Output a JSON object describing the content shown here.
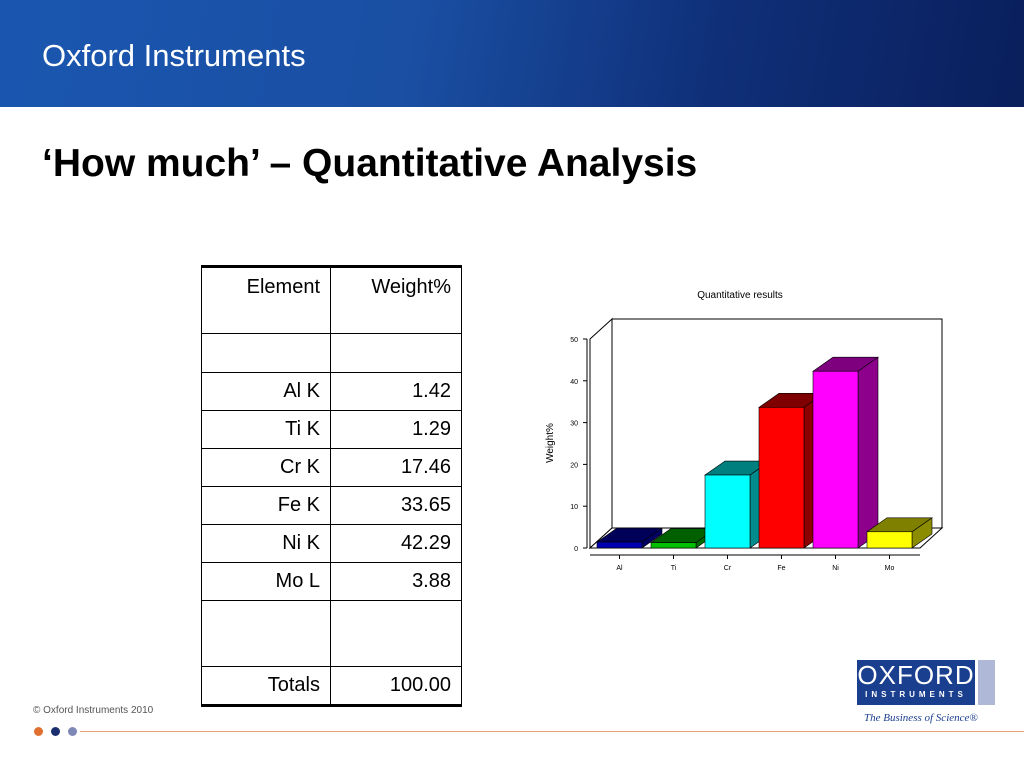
{
  "header": {
    "title": "Oxford Instruments"
  },
  "slide": {
    "title": "‘How much’ – Quantitative Analysis"
  },
  "table": {
    "header": [
      "Element",
      "Weight%"
    ],
    "rows": [
      [
        "Al K",
        "1.42"
      ],
      [
        "Ti K",
        "1.29"
      ],
      [
        "Cr K",
        "17.46"
      ],
      [
        "Fe K",
        "33.65"
      ],
      [
        "Ni K",
        "42.29"
      ],
      [
        "Mo L",
        "3.88"
      ]
    ],
    "totals": [
      "Totals",
      "100.00"
    ]
  },
  "chart_data": {
    "type": "bar3d",
    "title": "Quantitative results",
    "y_label": "Weight%",
    "categories": [
      "Al",
      "Ti",
      "Cr",
      "Fe",
      "Ni",
      "Mo"
    ],
    "values": [
      1.42,
      1.29,
      17.46,
      33.65,
      42.29,
      3.88
    ],
    "colors": [
      "#0000b0",
      "#00c000",
      "#00ffff",
      "#ff0000",
      "#ff00ff",
      "#ffff00"
    ],
    "ylim": [
      0,
      50
    ],
    "yticks": [
      0,
      10,
      20,
      30,
      40,
      50
    ]
  },
  "footer": {
    "copyright": "© Oxford Instruments 2010",
    "logo_top": "OXFORD",
    "logo_bottom": "INSTRUMENTS",
    "tagline": "The Business of Science®"
  }
}
